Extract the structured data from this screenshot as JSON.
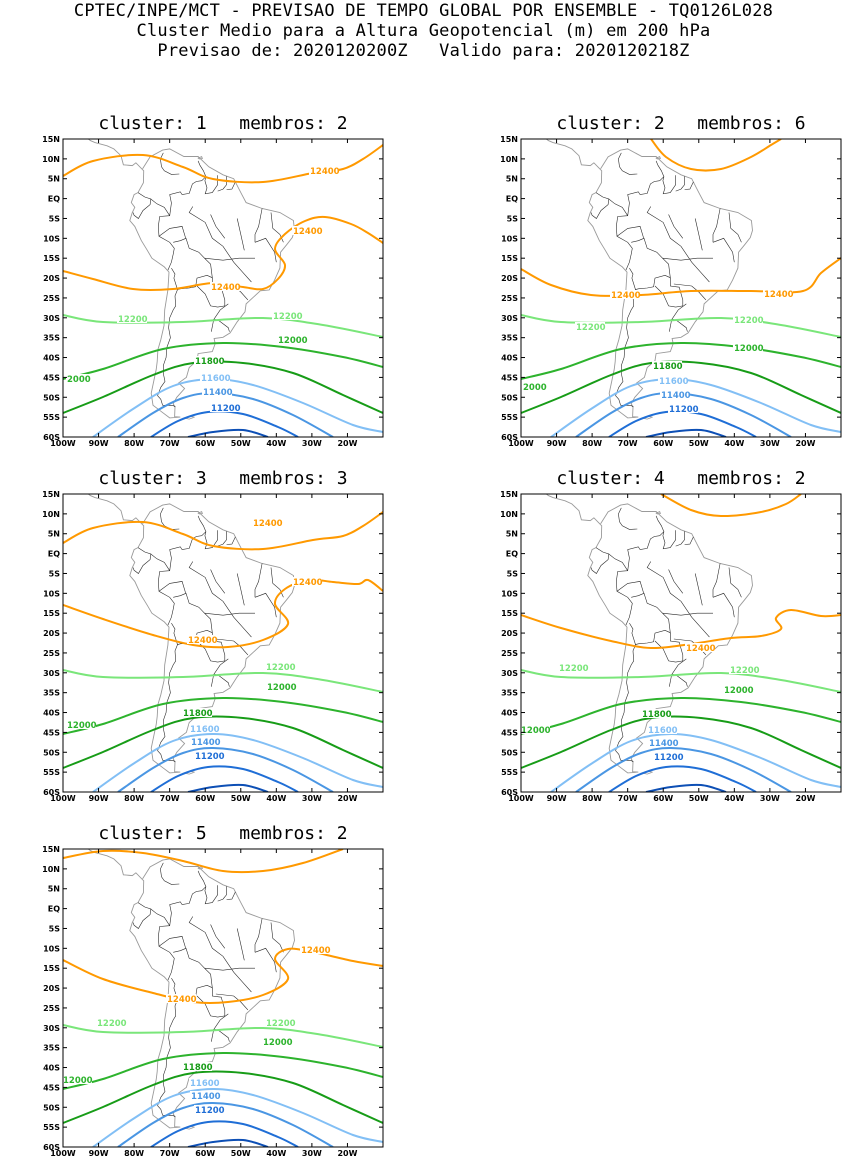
{
  "header": {
    "line1": "CPTEC/INPE/MCT - PREVISAO DE TEMPO GLOBAL POR ENSEMBLE - TQ0126L028",
    "line2": "Cluster Medio para a Altura Geopotencial (m) em 200 hPa",
    "line3": "Previsao de: 2020120200Z   Valido para: 2020120218Z"
  },
  "axes": {
    "lat_labels": [
      "15N",
      "10N",
      "5N",
      "EQ",
      "5S",
      "10S",
      "15S",
      "20S",
      "25S",
      "30S",
      "35S",
      "40S",
      "45S",
      "50S",
      "55S",
      "60S"
    ],
    "lon_labels": [
      "100W",
      "90W",
      "80W",
      "70W",
      "60W",
      "50W",
      "40W",
      "30W",
      "20W"
    ]
  },
  "colors": {
    "c12400": "#ff9900",
    "c12200": "#7ae67a",
    "c12000": "#2db32d",
    "c11800": "#179c17",
    "c11600": "#82bff5",
    "c11400": "#4a96e3",
    "c11200": "#1f6ed6",
    "c11000": "#0d4fb5",
    "coast": "#9a9a9a",
    "border": "#2a2a2a"
  },
  "panels": [
    {
      "title": "cluster: 1   membros: 2",
      "labels": {
        "a": "12400",
        "b": "12400",
        "c": "12400",
        "d": "12200",
        "e": "12200",
        "f": "12000",
        "g": "2000",
        "h": "11800",
        "i": "11600",
        "j": "11400",
        "k": "11200"
      }
    },
    {
      "title": "cluster: 2   membros: 6",
      "labels": {
        "b": "12400",
        "c": "12400",
        "d": "12200",
        "e": "12200",
        "f": "12000",
        "g": "2000",
        "h": "11800",
        "i": "11600",
        "j": "11400",
        "k": "11200"
      }
    },
    {
      "title": "cluster: 3   membros: 3",
      "labels": {
        "a": "12400",
        "b": "12400",
        "c": "12400",
        "d": "12200",
        "f": "12000",
        "g": "12000",
        "h": "11800",
        "i": "11600",
        "j": "11400",
        "k": "11200"
      }
    },
    {
      "title": "cluster: 4   membros: 2",
      "labels": {
        "c": "12400",
        "d": "12200",
        "e": "12200",
        "f": "12000",
        "g": "12000",
        "h": "11800",
        "i": "11600",
        "j": "11400",
        "k": "11200"
      }
    },
    {
      "title": "cluster: 5   membros: 2",
      "labels": {
        "b": "12400",
        "c": "12400",
        "d": "12200",
        "e": "12200",
        "f": "12000",
        "g": "12000",
        "h": "11800",
        "i": "11600",
        "j": "11400",
        "k": "11200"
      }
    }
  ]
}
